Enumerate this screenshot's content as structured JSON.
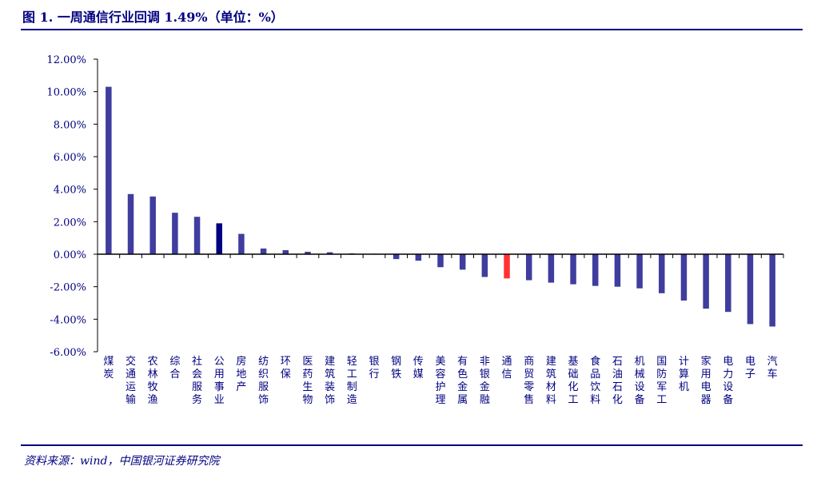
{
  "figure": {
    "title": "图 1. 一周通信行业回调 1.49%（单位：%）",
    "source": "资料来源：wind，中国银河证券研究院"
  },
  "chart_data": {
    "type": "bar",
    "categories": [
      "煤炭",
      "交通运输",
      "农林牧渔",
      "综合",
      "社会服务",
      "公用事业",
      "房地产",
      "纺织服饰",
      "环保",
      "医药生物",
      "建筑装饰",
      "轻工制造",
      "银行",
      "钢铁",
      "传媒",
      "美容护理",
      "有色金属",
      "非银金融",
      "通信",
      "商贸零售",
      "建筑材料",
      "基础化工",
      "食品饮料",
      "石油石化",
      "机械设备",
      "国防军工",
      "计算机",
      "家用电器",
      "电力设备",
      "电子",
      "汽车"
    ],
    "values": [
      10.3,
      3.7,
      3.55,
      2.55,
      2.3,
      1.9,
      1.25,
      0.35,
      0.25,
      0.15,
      0.12,
      0.05,
      0.03,
      -0.3,
      -0.4,
      -0.8,
      -0.95,
      -1.4,
      -1.49,
      -1.6,
      -1.75,
      -1.85,
      -1.95,
      -2.0,
      -2.1,
      -2.4,
      -2.85,
      -3.35,
      -3.55,
      -4.3,
      -4.45
    ],
    "ylim": [
      -6,
      12
    ],
    "yticks": [
      12,
      10,
      8,
      6,
      4,
      2,
      0,
      -2,
      -4,
      -6
    ],
    "ytick_labels": [
      "12.00%",
      "10.00%",
      "8.00%",
      "6.00%",
      "4.00%",
      "2.00%",
      "0.00%",
      "-2.00%",
      "-4.00%",
      "-6.00%"
    ],
    "colors": {
      "default": "#3f3d9e",
      "highlight_industry": "通信",
      "highlight": "#ff3333",
      "alt_industry": "公用事业",
      "alt": "#000080",
      "axis": "#000000",
      "text": "#000080"
    },
    "grid": false,
    "legend": "none"
  }
}
